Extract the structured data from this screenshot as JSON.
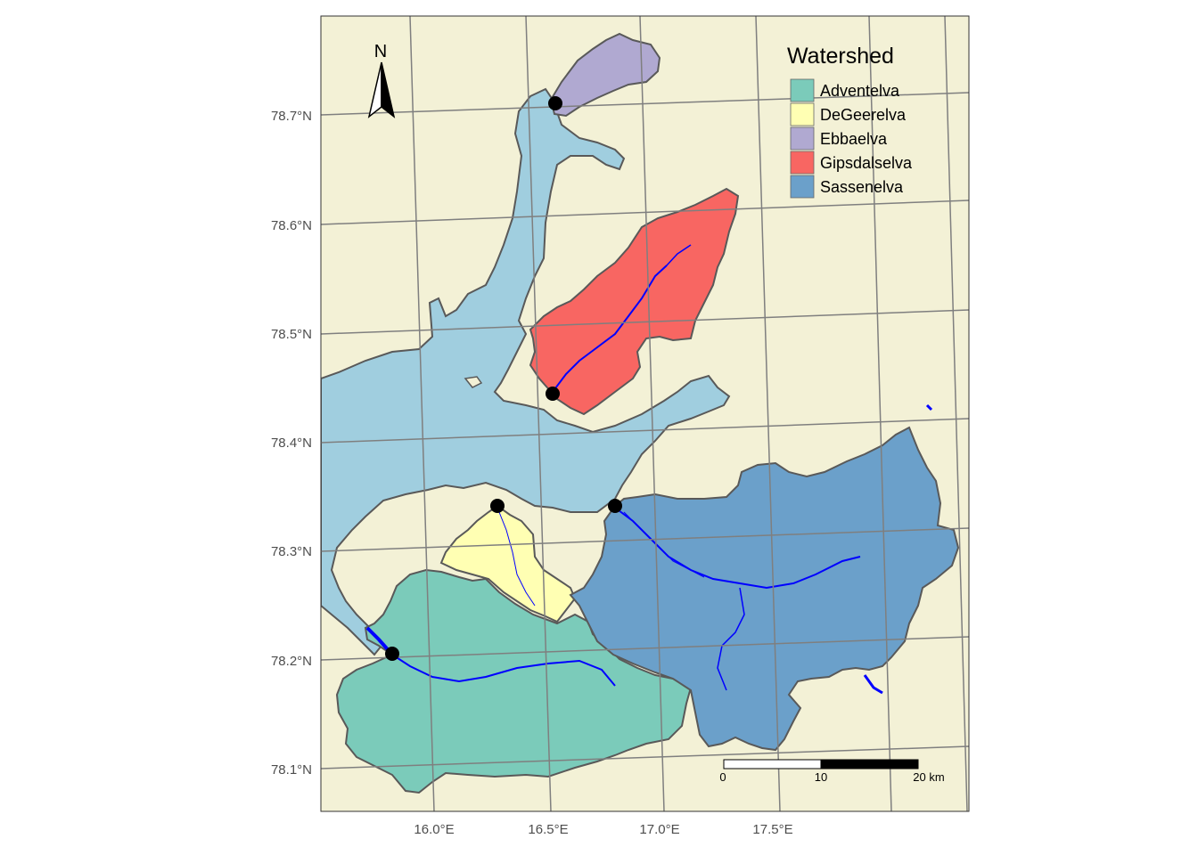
{
  "map": {
    "background_color": "#F3F1D6",
    "sea_color": "#A0CEDF",
    "river_color": "#0000FF",
    "outline_color": "#595959",
    "graticule_color": "#7F7F7F",
    "lat_labels": [
      "78.7°N",
      "78.6°N",
      "78.5°N",
      "78.4°N",
      "78.3°N",
      "78.2°N",
      "78.1°N"
    ],
    "lon_labels": [
      "16.0°E",
      "16.5°E",
      "17.0°E",
      "17.5°E"
    ],
    "watersheds": [
      {
        "name": "Adventelva",
        "color": "#7BCBBA"
      },
      {
        "name": "DeGeerelva",
        "color": "#FFFFB3"
      },
      {
        "name": "Ebbaelva",
        "color": "#B0A9D1"
      },
      {
        "name": "Gipsdalselva",
        "color": "#F86662"
      },
      {
        "name": "Sassenelva",
        "color": "#6BA0CA"
      }
    ],
    "outlet_points": [
      "Ebbaelva",
      "Gipsdalselva",
      "DeGeerelva",
      "Sassenelva",
      "Adventelva"
    ]
  },
  "legend": {
    "title": "Watershed",
    "items": [
      "Adventelva",
      "DeGeerelva",
      "Ebbaelva",
      "Gipsdalselva",
      "Sassenelva"
    ]
  },
  "north_arrow": {
    "letter": "N",
    "icon": "north-arrow-icon"
  },
  "scale_bar": {
    "labels": [
      "0",
      "10",
      "20 km"
    ]
  }
}
